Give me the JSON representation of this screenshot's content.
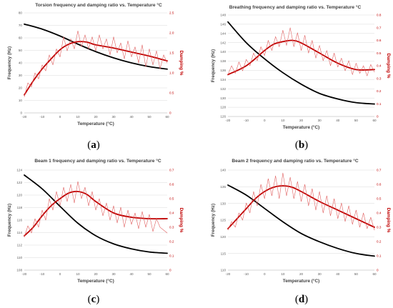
{
  "chart_data": [
    {
      "id": "a",
      "type": "line",
      "title": "Torsion  frequency and damping ratio vs. Temperature °C",
      "xlabel": "Temperature (°C)",
      "ylabel": "Frequency (Hz)",
      "y2label": "Damping %",
      "xlim": [
        -20,
        60
      ],
      "xticks": [
        -20,
        -10,
        0,
        10,
        20,
        30,
        40,
        50,
        60
      ],
      "ylim": [
        0,
        80
      ],
      "yticks": [
        0,
        10,
        20,
        30,
        40,
        50,
        60,
        70,
        80
      ],
      "y2lim": [
        0,
        2.5
      ],
      "y2ticks": [
        "0",
        "0.5",
        "1.0",
        "1.5",
        "2.0",
        "2.5"
      ],
      "y2tickvals": [
        0,
        0.5,
        1.0,
        1.5,
        2.0,
        2.5
      ],
      "caption": "a",
      "series": [
        {
          "axis": "left",
          "color": "#000000",
          "smooth": true,
          "x": [
            -20,
            -10,
            0,
            10,
            20,
            30,
            40,
            50,
            60
          ],
          "y": [
            71,
            67,
            61.5,
            55,
            49,
            44,
            40,
            37,
            35
          ]
        },
        {
          "axis": "right",
          "color": "#c00000",
          "smooth": true,
          "x": [
            -20,
            -15,
            -10,
            -5,
            0,
            5,
            10,
            15,
            20,
            30,
            40,
            50,
            60
          ],
          "y": [
            0.45,
            0.8,
            1.1,
            1.35,
            1.58,
            1.72,
            1.78,
            1.77,
            1.7,
            1.62,
            1.52,
            1.42,
            1.3
          ]
        },
        {
          "axis": "right",
          "color": "#e06060",
          "noisy": true,
          "x": [
            -20,
            -18,
            -16,
            -14,
            -12,
            -10,
            -8,
            -6,
            -4,
            -2,
            0,
            2,
            4,
            6,
            8,
            10,
            12,
            14,
            16,
            18,
            20,
            22,
            24,
            26,
            28,
            30,
            32,
            34,
            36,
            38,
            40,
            42,
            44,
            46,
            48,
            50,
            52,
            54,
            56,
            58,
            60
          ],
          "y": [
            0.4,
            0.75,
            0.65,
            1.0,
            0.85,
            1.2,
            1.05,
            1.45,
            1.2,
            1.6,
            1.4,
            1.9,
            1.55,
            1.85,
            1.6,
            2.05,
            1.65,
            1.95,
            1.6,
            1.9,
            1.55,
            1.95,
            1.6,
            1.85,
            1.45,
            1.9,
            1.5,
            1.75,
            1.35,
            1.8,
            1.4,
            1.65,
            1.25,
            1.7,
            1.15,
            1.6,
            1.2,
            1.55,
            1.1,
            1.45,
            1.25
          ]
        }
      ]
    },
    {
      "id": "b",
      "type": "line",
      "title": "Breathing frequency and damping ratio vs. Temperature °C",
      "xlabel": "Temperature (°C)",
      "ylabel": "Frequency (Hz)",
      "y2label": "Damping %",
      "xlim": [
        -20,
        60
      ],
      "xticks": [
        -20,
        -10,
        0,
        10,
        20,
        30,
        40,
        50,
        60
      ],
      "ylim": [
        126,
        148
      ],
      "yticks": [
        126,
        128,
        130,
        132,
        134,
        136,
        138,
        140,
        142,
        144,
        146,
        148
      ],
      "y2lim": [
        0,
        0.8
      ],
      "y2ticks": [
        "0",
        "0.1",
        "0.2",
        "0.3",
        "0.4",
        "0.5",
        "0.6",
        "0.7",
        "0.8"
      ],
      "y2tickvals": [
        0,
        0.1,
        0.2,
        0.3,
        0.4,
        0.5,
        0.6,
        0.7,
        0.8
      ],
      "caption": "b",
      "series": [
        {
          "axis": "left",
          "color": "#000000",
          "smooth": true,
          "x": [
            -20,
            -10,
            0,
            10,
            20,
            30,
            40,
            50,
            60
          ],
          "y": [
            146.5,
            142,
            138.5,
            135.5,
            133,
            131,
            129.8,
            129,
            128.7
          ]
        },
        {
          "axis": "right",
          "color": "#c00000",
          "smooth": true,
          "x": [
            -20,
            -10,
            0,
            5,
            10,
            15,
            20,
            30,
            40,
            50,
            60
          ],
          "y": [
            0.33,
            0.4,
            0.52,
            0.57,
            0.59,
            0.6,
            0.58,
            0.5,
            0.42,
            0.37,
            0.37
          ]
        },
        {
          "axis": "right",
          "color": "#e06060",
          "noisy": true,
          "x": [
            -20,
            -18,
            -16,
            -14,
            -12,
            -10,
            -8,
            -6,
            -4,
            -2,
            0,
            2,
            4,
            6,
            8,
            10,
            12,
            14,
            16,
            18,
            20,
            22,
            24,
            26,
            28,
            30,
            32,
            34,
            36,
            38,
            40,
            42,
            44,
            46,
            48,
            50,
            52,
            54,
            56,
            58,
            60
          ],
          "y": [
            0.33,
            0.4,
            0.34,
            0.43,
            0.36,
            0.45,
            0.4,
            0.5,
            0.44,
            0.55,
            0.48,
            0.6,
            0.52,
            0.63,
            0.55,
            0.68,
            0.56,
            0.7,
            0.55,
            0.66,
            0.52,
            0.64,
            0.5,
            0.6,
            0.46,
            0.56,
            0.44,
            0.52,
            0.4,
            0.5,
            0.39,
            0.46,
            0.36,
            0.44,
            0.33,
            0.42,
            0.34,
            0.4,
            0.32,
            0.41,
            0.35
          ]
        }
      ]
    },
    {
      "id": "c",
      "type": "line",
      "title": "Beam 1 frequency and damping ratio vs. Temperature °C",
      "xlabel": "Temperature (°C)",
      "ylabel": "Frequency (Hz)",
      "y2label": "Damping %",
      "xlim": [
        -20,
        60
      ],
      "xticks": [
        -20,
        -10,
        0,
        10,
        20,
        30,
        40,
        50,
        60
      ],
      "ylim": [
        108,
        124
      ],
      "yticks": [
        108,
        110,
        112,
        114,
        116,
        118,
        120,
        122,
        124
      ],
      "y2lim": [
        0,
        0.7
      ],
      "y2ticks": [
        "0",
        "0.1",
        "0.2",
        "0.3",
        "0.4",
        "0.5",
        "0.6",
        "0.7"
      ],
      "y2tickvals": [
        0,
        0.1,
        0.2,
        0.3,
        0.4,
        0.5,
        0.6,
        0.7
      ],
      "caption": "c",
      "series": [
        {
          "axis": "left",
          "color": "#000000",
          "smooth": true,
          "x": [
            -20,
            -10,
            0,
            10,
            20,
            30,
            40,
            50,
            60
          ],
          "y": [
            123.2,
            121,
            118.2,
            115.5,
            113.5,
            112.2,
            111.4,
            110.9,
            110.7
          ]
        },
        {
          "axis": "right",
          "color": "#c00000",
          "smooth": true,
          "x": [
            -20,
            -15,
            -10,
            -5,
            0,
            5,
            10,
            15,
            20,
            30,
            40,
            50,
            60
          ],
          "y": [
            0.24,
            0.3,
            0.38,
            0.45,
            0.5,
            0.54,
            0.55,
            0.53,
            0.48,
            0.4,
            0.37,
            0.36,
            0.36
          ]
        },
        {
          "axis": "right",
          "color": "#e06060",
          "noisy": true,
          "x": [
            -20,
            -18,
            -16,
            -14,
            -12,
            -10,
            -8,
            -6,
            -4,
            -2,
            0,
            2,
            4,
            6,
            8,
            10,
            12,
            14,
            16,
            18,
            20,
            22,
            24,
            26,
            28,
            30,
            32,
            34,
            36,
            38,
            40,
            42,
            44,
            46,
            48,
            50,
            52,
            54,
            56,
            58,
            60
          ],
          "y": [
            0.23,
            0.31,
            0.26,
            0.36,
            0.3,
            0.42,
            0.35,
            0.5,
            0.42,
            0.55,
            0.45,
            0.58,
            0.48,
            0.6,
            0.47,
            0.62,
            0.5,
            0.58,
            0.45,
            0.55,
            0.42,
            0.5,
            0.38,
            0.47,
            0.35,
            0.45,
            0.33,
            0.44,
            0.3,
            0.42,
            0.32,
            0.4,
            0.29,
            0.41,
            0.3,
            0.39,
            0.27,
            0.36,
            0.3,
            0.28,
            0.26
          ]
        }
      ]
    },
    {
      "id": "d",
      "type": "line",
      "title": "Beam 2 frequency and damping ratio vs. Temperature °C",
      "xlabel": "Temperature (°C)",
      "ylabel": "Frequency (Hz)",
      "y2label": "Damping %",
      "xlim": [
        -20,
        60
      ],
      "xticks": [
        -20,
        -10,
        0,
        10,
        20,
        30,
        40,
        50,
        60
      ],
      "ylim": [
        110,
        140
      ],
      "yticks": [
        110,
        115,
        120,
        125,
        130,
        135,
        140
      ],
      "y2lim": [
        0,
        0.7
      ],
      "y2ticks": [
        "0",
        "0.1",
        "0.2",
        "0.3",
        "0.4",
        "0.5",
        "0.6",
        "0.7"
      ],
      "y2tickvals": [
        0,
        0.1,
        0.2,
        0.3,
        0.4,
        0.5,
        0.6,
        0.7
      ],
      "caption": "d",
      "series": [
        {
          "axis": "left",
          "color": "#000000",
          "smooth": true,
          "x": [
            -20,
            -10,
            0,
            10,
            20,
            30,
            40,
            50,
            60
          ],
          "y": [
            135.5,
            132.5,
            128.5,
            124.5,
            121,
            118.5,
            116.5,
            115,
            114.2
          ]
        },
        {
          "axis": "right",
          "color": "#c00000",
          "smooth": true,
          "x": [
            -20,
            -15,
            -10,
            -5,
            0,
            5,
            10,
            15,
            20,
            30,
            40,
            50,
            60
          ],
          "y": [
            0.29,
            0.36,
            0.43,
            0.5,
            0.55,
            0.58,
            0.59,
            0.58,
            0.55,
            0.48,
            0.42,
            0.36,
            0.3
          ]
        },
        {
          "axis": "right",
          "color": "#e06060",
          "noisy": true,
          "x": [
            -20,
            -18,
            -16,
            -14,
            -12,
            -10,
            -8,
            -6,
            -4,
            -2,
            0,
            2,
            4,
            6,
            8,
            10,
            12,
            14,
            16,
            18,
            20,
            22,
            24,
            26,
            28,
            30,
            32,
            34,
            36,
            38,
            40,
            42,
            44,
            46,
            48,
            50,
            52,
            54,
            56,
            58,
            60
          ],
          "y": [
            0.28,
            0.34,
            0.3,
            0.4,
            0.35,
            0.47,
            0.4,
            0.55,
            0.45,
            0.6,
            0.5,
            0.64,
            0.52,
            0.66,
            0.5,
            0.68,
            0.52,
            0.65,
            0.5,
            0.62,
            0.48,
            0.6,
            0.45,
            0.57,
            0.42,
            0.55,
            0.4,
            0.52,
            0.38,
            0.5,
            0.36,
            0.47,
            0.34,
            0.45,
            0.32,
            0.42,
            0.3,
            0.4,
            0.29,
            0.37,
            0.28
          ]
        }
      ]
    }
  ]
}
